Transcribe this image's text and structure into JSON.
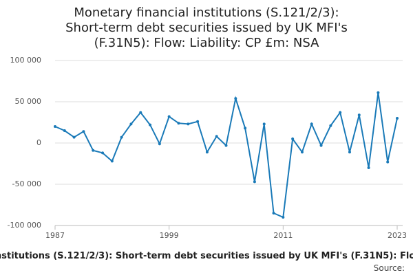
{
  "chart_data": {
    "type": "line",
    "title": "Monetary financial institutions (S.121/2/3): Short-term debt securities issued by UK MFI's (F.31N5): Flow: Liability: CP £m: NSA",
    "x_axis_caption": "l institutions (S.121/2/3): Short-term debt securities issued by UK MFI's (F.31N5): Flow:",
    "source": "Source:",
    "x": [
      1987,
      1988,
      1989,
      1990,
      1991,
      1992,
      1993,
      1994,
      1995,
      1996,
      1997,
      1998,
      1999,
      2000,
      2001,
      2002,
      2003,
      2004,
      2005,
      2006,
      2007,
      2008,
      2009,
      2010,
      2011,
      2012,
      2013,
      2014,
      2015,
      2016,
      2017,
      2018,
      2019,
      2020,
      2021,
      2022,
      2023
    ],
    "series": [
      {
        "color": "#1a7ab8",
        "values": [
          20000,
          15000,
          7000,
          14000,
          -9000,
          -12000,
          -22000,
          7000,
          23000,
          37000,
          22000,
          -1000,
          32000,
          24000,
          23000,
          26000,
          -11000,
          8000,
          -3000,
          54000,
          18000,
          -47000,
          23000,
          -85000,
          -90000,
          5000,
          -11000,
          23000,
          -3000,
          21000,
          37000,
          -11000,
          34000,
          -30000,
          61000,
          -23000,
          30000
        ]
      }
    ],
    "xlim": [
      1987,
      2023
    ],
    "xticks": [
      1987,
      1999,
      2011,
      2023
    ],
    "ylim": [
      -100000,
      100000
    ],
    "yticks": [
      {
        "value": -100000,
        "label": "-100 000"
      },
      {
        "value": -50000,
        "label": "-50 000"
      },
      0,
      {
        "value": 50000,
        "label": "50 000"
      },
      {
        "value": 100000,
        "label": "100 000"
      }
    ],
    "grid": true
  }
}
